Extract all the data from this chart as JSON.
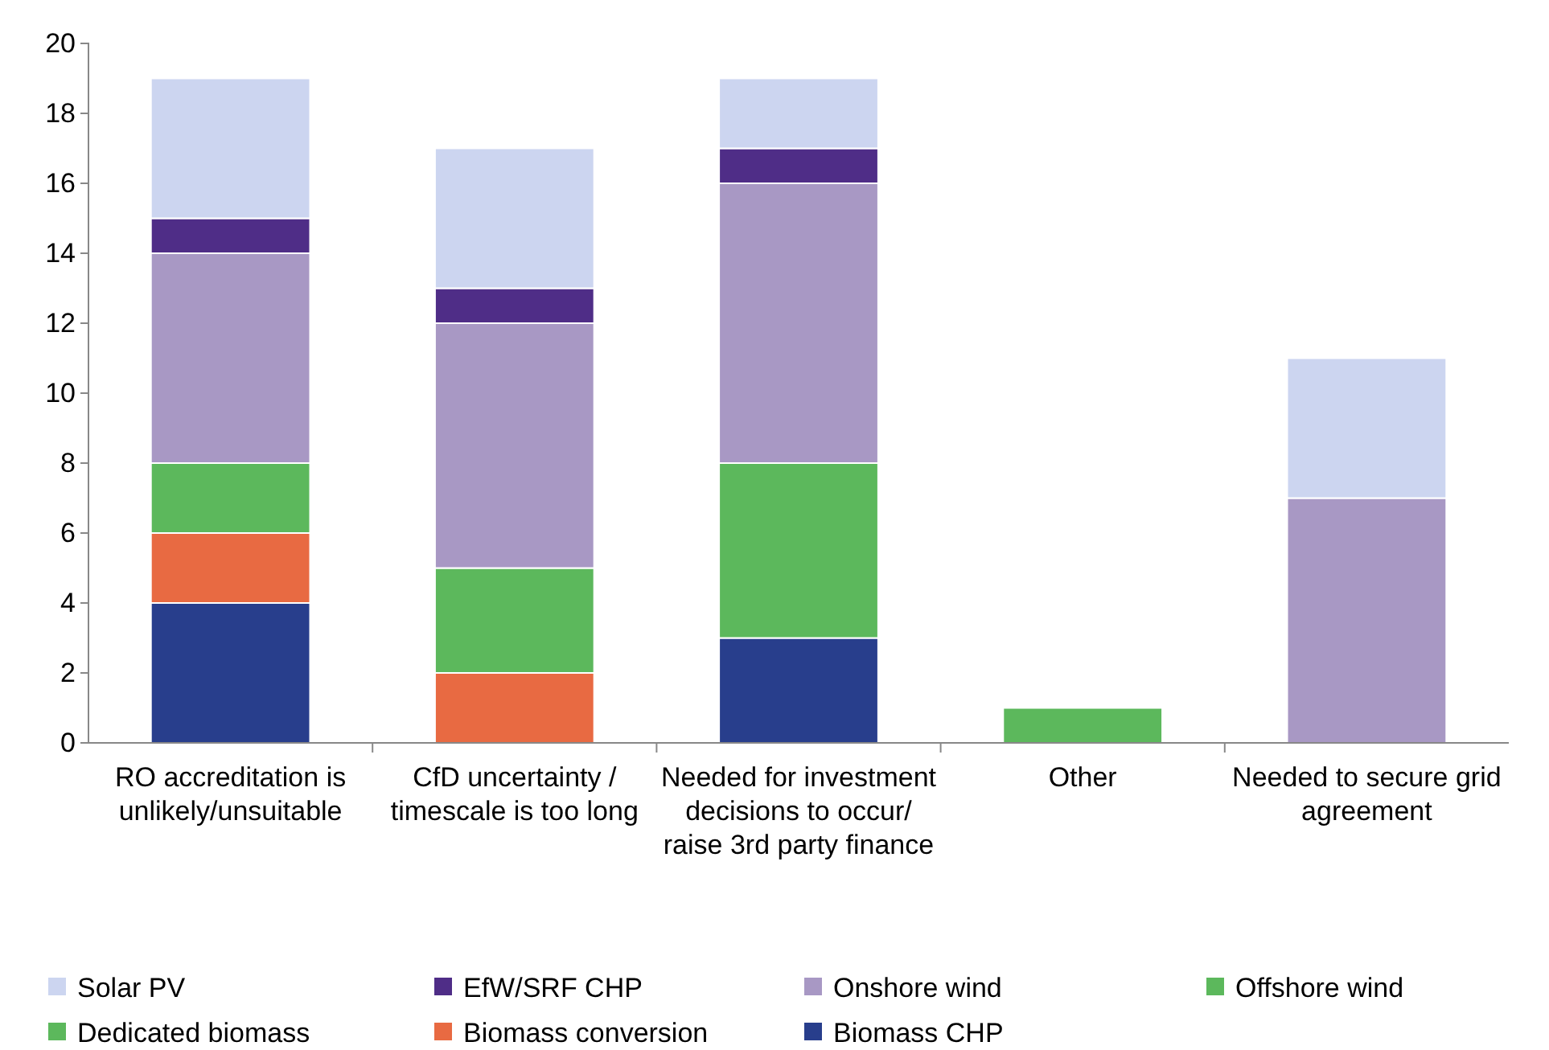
{
  "chart_data": {
    "type": "bar",
    "stacked": true,
    "categories": [
      "RO accreditation is unlikely/unsuitable",
      "CfD uncertainty / timescale is too long",
      "Needed for investment decisions to occur/ raise 3rd party finance",
      "Other",
      "Needed to secure grid agreement"
    ],
    "series": [
      {
        "name": "Biomass CHP",
        "color": "#283e8c",
        "values": [
          4,
          0,
          3,
          0,
          0
        ]
      },
      {
        "name": "Biomass conversion",
        "color": "#e86a42",
        "values": [
          2,
          2,
          0,
          0,
          0
        ]
      },
      {
        "name": "Dedicated biomass",
        "color": "#5cb85c",
        "values": [
          2,
          3,
          5,
          1,
          0
        ]
      },
      {
        "name": "Offshore wind",
        "color": "#5cb85c",
        "values": [
          0,
          0,
          0,
          0,
          0
        ]
      },
      {
        "name": "Onshore wind",
        "color": "#a898c4",
        "values": [
          6,
          7,
          8,
          0,
          7
        ]
      },
      {
        "name": "EfW/SRF CHP",
        "color": "#4f2d87",
        "values": [
          1,
          1,
          1,
          0,
          0
        ]
      },
      {
        "name": "Solar PV",
        "color": "#ccd5f0",
        "values": [
          4,
          4,
          2,
          0,
          4
        ]
      }
    ],
    "ylim": [
      0,
      20
    ],
    "yticks": [
      0,
      2,
      4,
      6,
      8,
      10,
      12,
      14,
      16,
      18,
      20
    ],
    "grid": false,
    "legend": "bottom"
  }
}
